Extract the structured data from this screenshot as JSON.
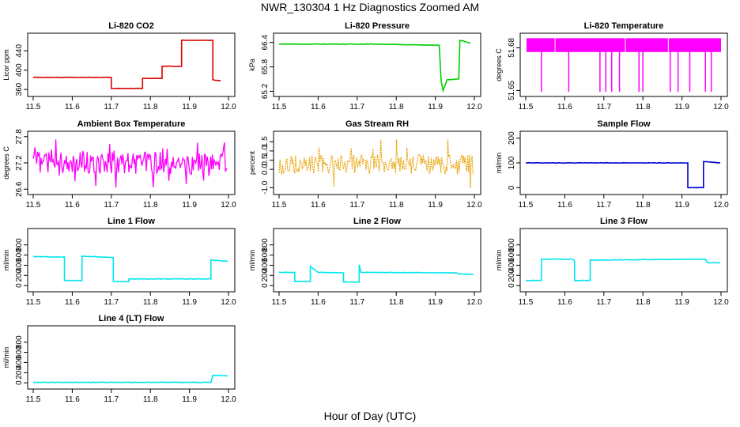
{
  "figure": {
    "title": "NWR_130304  1 Hz Diagnostics Zoomed AM",
    "xlabel": "Hour of Day (UTC)"
  },
  "chart_data": [
    {
      "type": "line",
      "title": "Li-820 CO2",
      "ylabel": "Licor ppm",
      "color": "#dd0000",
      "xlim": [
        11.5,
        12.0
      ],
      "ylim": [
        352,
        470
      ],
      "xticks": [
        "11.5",
        "11.6",
        "11.7",
        "11.8",
        "11.9",
        "12.0"
      ],
      "yticks": [
        "360",
        "400",
        "440"
      ],
      "series": [
        {
          "x": [
            11.5,
            11.7,
            11.7,
            11.78,
            11.78,
            11.83,
            11.83,
            11.88,
            11.88,
            11.96,
            11.96,
            11.98
          ],
          "y": [
            385,
            385,
            362,
            362,
            383,
            383,
            408,
            408,
            462,
            462,
            380,
            378
          ]
        }
      ]
    },
    {
      "type": "line",
      "title": "Li-820 Pressure",
      "ylabel": "kPa",
      "color": "#00cc00",
      "xlim": [
        11.5,
        12.0
      ],
      "ylim": [
        65.15,
        66.55
      ],
      "xticks": [
        "11.5",
        "11.6",
        "11.7",
        "11.8",
        "11.9",
        "12.0"
      ],
      "yticks": [
        "65.2",
        "65.8",
        "66.4"
      ],
      "series": [
        {
          "x": [
            11.5,
            11.75,
            11.91,
            11.915,
            11.92,
            11.93,
            11.955,
            11.96,
            11.963,
            11.97,
            11.99
          ],
          "y": [
            66.36,
            66.36,
            66.33,
            65.45,
            65.22,
            65.48,
            65.5,
            65.5,
            66.45,
            66.44,
            66.38
          ]
        }
      ]
    },
    {
      "type": "line",
      "title": "Li-820 Temperature",
      "ylabel": "degrees C",
      "color": "#ff00ff",
      "xlim": [
        11.5,
        12.0
      ],
      "ylim": [
        51.648,
        51.688
      ],
      "xticks": [
        "11.5",
        "11.6",
        "11.7",
        "11.8",
        "11.9",
        "12.0"
      ],
      "yticks": [
        "51.65",
        "51.68"
      ],
      "band": [
        51.677,
        51.6867
      ],
      "spikes_x": [
        11.54,
        11.61,
        11.69,
        11.705,
        11.72,
        11.74,
        11.79,
        11.8,
        11.87,
        11.89,
        11.92,
        11.96,
        11.975
      ]
    },
    {
      "type": "line",
      "title": "Ambient Box Temperature",
      "ylabel": "degrees C",
      "color": "#ff00ff",
      "xlim": [
        11.5,
        12.0
      ],
      "ylim": [
        26.55,
        27.85
      ],
      "xticks": [
        "11.5",
        "11.6",
        "11.7",
        "11.8",
        "11.9",
        "12.0"
      ],
      "yticks": [
        "26.6",
        "27.2",
        "27.8"
      ],
      "noise": {
        "center": 27.2,
        "band": [
          26.95,
          27.45
        ],
        "extremes": [
          26.62,
          27.78
        ]
      }
    },
    {
      "type": "line",
      "title": "Gas Stream RH",
      "ylabel": "percent",
      "color": "#e8a000",
      "xlim": [
        11.5,
        12.0
      ],
      "ylim": [
        -1.2,
        1.9
      ],
      "xticks": [
        "11.5",
        "11.6",
        "11.7",
        "11.8",
        "11.9",
        "12.0"
      ],
      "yticks": [
        "-1.0",
        "0.0",
        "0.5",
        "1.0",
        "1.5"
      ],
      "noise": {
        "center": 0.2,
        "band": [
          -0.3,
          0.8
        ],
        "extremes": [
          -1.0,
          1.7
        ]
      }
    },
    {
      "type": "line",
      "title": "Sample Flow",
      "ylabel": "ml/min",
      "color": "#0000cc",
      "xlim": [
        11.5,
        12.0
      ],
      "ylim": [
        -15,
        215
      ],
      "xticks": [
        "11.5",
        "11.6",
        "11.7",
        "11.8",
        "11.9",
        "12.0"
      ],
      "yticks": [
        "0",
        "100",
        "200"
      ],
      "series": [
        {
          "x": [
            11.5,
            11.915,
            11.915,
            11.955,
            11.955,
            11.998
          ],
          "y": [
            100,
            100,
            0,
            0,
            105,
            100
          ]
        }
      ]
    },
    {
      "type": "line",
      "title": "Line 1 Flow",
      "ylabel": "ml/min",
      "color": "#00e5ee",
      "xlim": [
        11.5,
        12.0
      ],
      "ylim": [
        -60,
        1060
      ],
      "xticks": [
        "11.5",
        "11.6",
        "11.7",
        "11.8",
        "11.9",
        "12.0"
      ],
      "yticks": [
        "0",
        "200",
        "400",
        "600",
        "800"
      ],
      "series": [
        {
          "x": [
            11.5,
            11.58,
            11.58,
            11.625,
            11.625,
            11.705,
            11.705,
            11.745,
            11.745,
            11.955,
            11.955,
            11.998
          ],
          "y": [
            570,
            560,
            100,
            100,
            580,
            550,
            80,
            80,
            130,
            130,
            500,
            480
          ]
        }
      ]
    },
    {
      "type": "line",
      "title": "Line 2 Flow",
      "ylabel": "ml/min",
      "color": "#00e5ee",
      "xlim": [
        11.5,
        12.0
      ],
      "ylim": [
        -60,
        1060
      ],
      "xticks": [
        "11.5",
        "11.6",
        "11.7",
        "11.8",
        "11.9",
        "12.0"
      ],
      "yticks": [
        "0",
        "200",
        "400",
        "600",
        "800"
      ],
      "series": [
        {
          "x": [
            11.5,
            11.54,
            11.54,
            11.58,
            11.58,
            11.6,
            11.665,
            11.665,
            11.705,
            11.705,
            11.71,
            11.955,
            11.96,
            11.998
          ],
          "y": [
            260,
            260,
            80,
            80,
            380,
            260,
            250,
            70,
            70,
            410,
            260,
            250,
            230,
            220
          ]
        }
      ]
    },
    {
      "type": "line",
      "title": "Line 3 Flow",
      "ylabel": "ml/min",
      "color": "#00e5ee",
      "xlim": [
        11.5,
        12.0
      ],
      "ylim": [
        -60,
        1060
      ],
      "xticks": [
        "11.5",
        "11.6",
        "11.7",
        "11.8",
        "11.9",
        "12.0"
      ],
      "yticks": [
        "0",
        "200",
        "400",
        "600",
        "800"
      ],
      "series": [
        {
          "x": [
            11.5,
            11.54,
            11.54,
            11.62,
            11.625,
            11.625,
            11.665,
            11.665,
            11.96,
            11.965,
            11.998
          ],
          "y": [
            100,
            100,
            520,
            520,
            480,
            100,
            100,
            500,
            520,
            450,
            450
          ]
        }
      ]
    },
    {
      "type": "line",
      "title": "Line 4 (LT) Flow",
      "ylabel": "ml/min",
      "color": "#00e5ee",
      "xlim": [
        11.5,
        12.0
      ],
      "ylim": [
        -60,
        1060
      ],
      "xticks": [
        "11.5",
        "11.6",
        "11.7",
        "11.8",
        "11.9",
        "12.0"
      ],
      "yticks": [
        "0",
        "200",
        "400",
        "600",
        "800"
      ],
      "series": [
        {
          "x": [
            11.5,
            11.955,
            11.96,
            11.998
          ],
          "y": [
            10,
            10,
            150,
            140
          ]
        }
      ]
    }
  ]
}
